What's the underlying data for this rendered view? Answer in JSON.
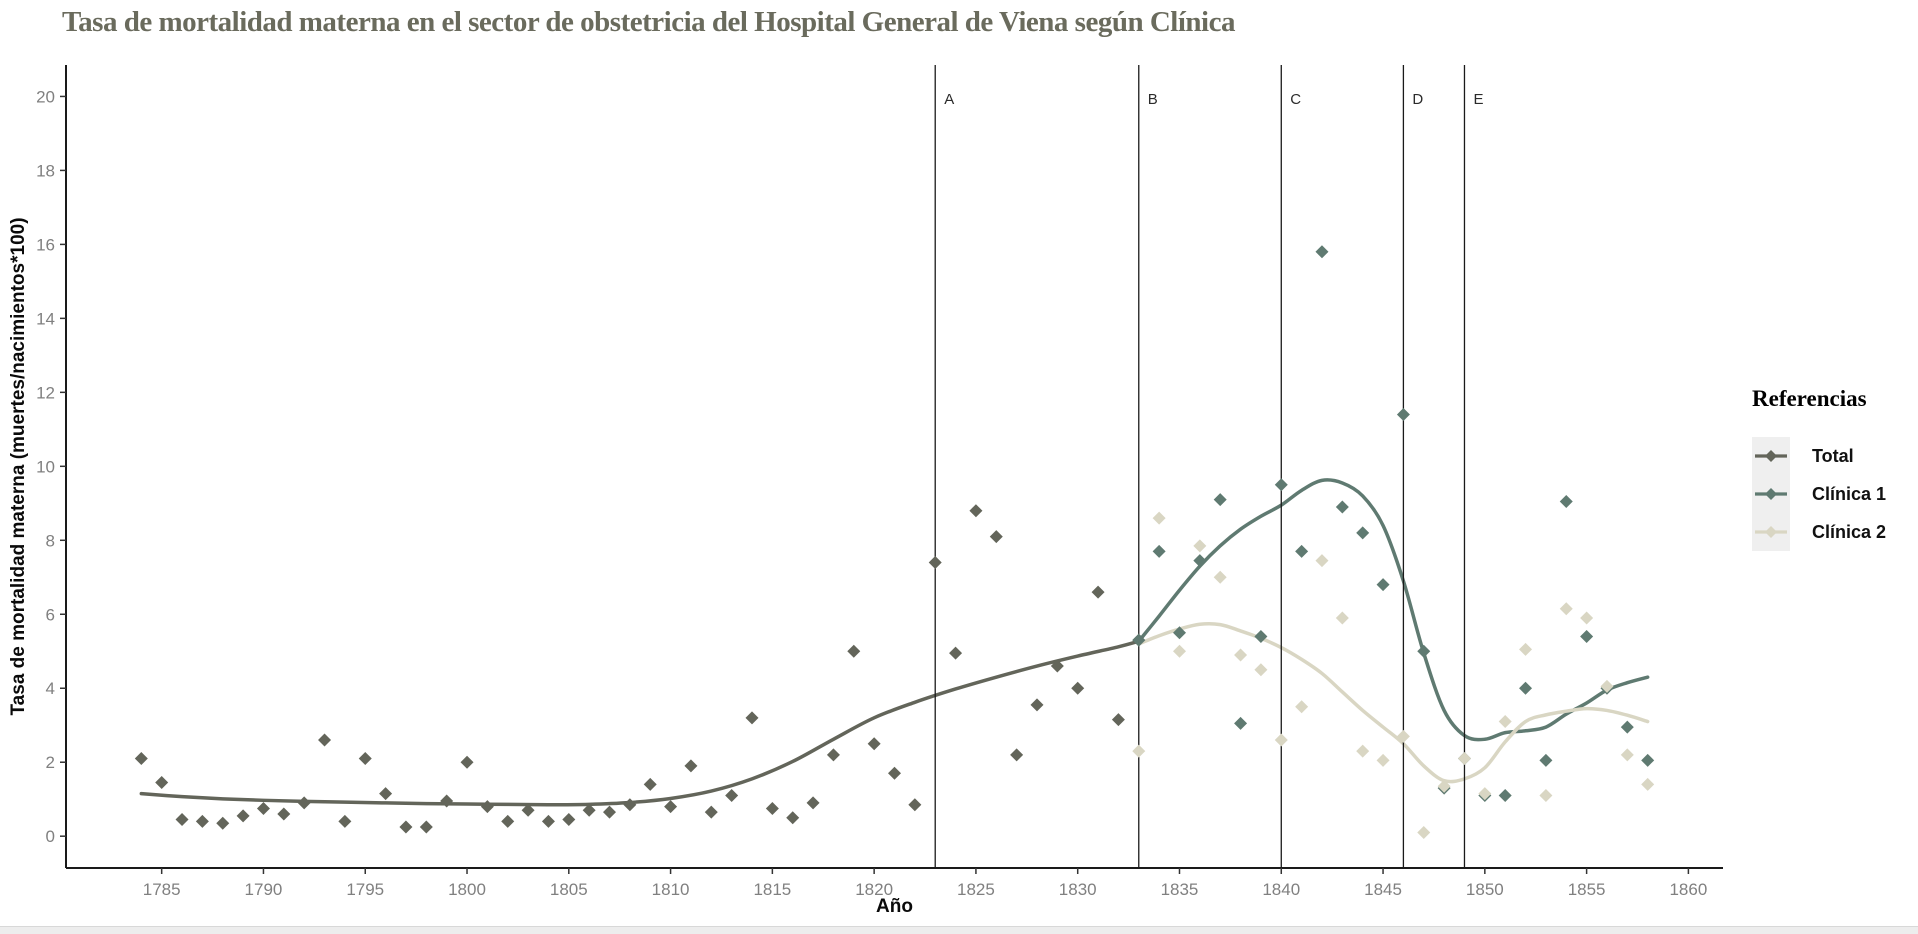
{
  "legend": {
    "title": "Referencias",
    "items": [
      {
        "label": "Total"
      },
      {
        "label": "Clínica 1"
      },
      {
        "label": "Clínica 2"
      }
    ]
  },
  "chart_data": {
    "type": "scatter",
    "title": "Tasa de mortalidad materna en el sector de obstetricia del Hospital General de Viena según Clínica",
    "xlabel": "Año",
    "ylabel": "Tasa de mortalidad materna (muertes/nacimientos*100)",
    "xlim": [
      1780.3,
      1861.7
    ],
    "ylim": [
      -0.86,
      20.85
    ],
    "x_ticks": [
      1785,
      1790,
      1795,
      1800,
      1805,
      1810,
      1815,
      1820,
      1825,
      1830,
      1835,
      1840,
      1845,
      1850,
      1855,
      1860
    ],
    "y_ticks": [
      0,
      2,
      4,
      6,
      8,
      10,
      12,
      14,
      16,
      18,
      20
    ],
    "grid": false,
    "legend_position": "right",
    "vlines": [
      {
        "label": "A",
        "year": 1823
      },
      {
        "label": "B",
        "year": 1833
      },
      {
        "label": "C",
        "year": 1840
      },
      {
        "label": "D",
        "year": 1846
      },
      {
        "label": "E",
        "year": 1849
      }
    ],
    "series": [
      {
        "name": "Total",
        "color": "#63655A",
        "points": [
          [
            1784,
            2.1
          ],
          [
            1785,
            1.45
          ],
          [
            1786,
            0.45
          ],
          [
            1787,
            0.4
          ],
          [
            1788,
            0.35
          ],
          [
            1789,
            0.55
          ],
          [
            1790,
            0.75
          ],
          [
            1791,
            0.6
          ],
          [
            1792,
            0.9
          ],
          [
            1793,
            2.6
          ],
          [
            1794,
            0.4
          ],
          [
            1795,
            2.1
          ],
          [
            1796,
            1.15
          ],
          [
            1797,
            0.25
          ],
          [
            1798,
            0.25
          ],
          [
            1799,
            0.95
          ],
          [
            1800,
            2.0
          ],
          [
            1801,
            0.8
          ],
          [
            1802,
            0.4
          ],
          [
            1803,
            0.7
          ],
          [
            1804,
            0.4
          ],
          [
            1805,
            0.45
          ],
          [
            1806,
            0.7
          ],
          [
            1807,
            0.65
          ],
          [
            1808,
            0.85
          ],
          [
            1809,
            1.4
          ],
          [
            1810,
            0.8
          ],
          [
            1811,
            1.9
          ],
          [
            1812,
            0.65
          ],
          [
            1813,
            1.1
          ],
          [
            1814,
            3.2
          ],
          [
            1815,
            0.75
          ],
          [
            1816,
            0.5
          ],
          [
            1817,
            0.9
          ],
          [
            1818,
            2.2
          ],
          [
            1819,
            5.0
          ],
          [
            1820,
            2.5
          ],
          [
            1821,
            1.7
          ],
          [
            1822,
            0.85
          ],
          [
            1823,
            7.4
          ],
          [
            1824,
            4.95
          ],
          [
            1825,
            8.8
          ],
          [
            1826,
            8.1
          ],
          [
            1827,
            2.2
          ],
          [
            1828,
            3.55
          ],
          [
            1829,
            4.6
          ],
          [
            1830,
            4.0
          ],
          [
            1831,
            6.6
          ],
          [
            1832,
            3.15
          ],
          [
            1833,
            5.3
          ]
        ],
        "smooth": [
          [
            1784,
            1.15
          ],
          [
            1786,
            1.07
          ],
          [
            1788,
            1.01
          ],
          [
            1790,
            0.97
          ],
          [
            1792,
            0.94
          ],
          [
            1794,
            0.92
          ],
          [
            1796,
            0.9
          ],
          [
            1798,
            0.88
          ],
          [
            1800,
            0.87
          ],
          [
            1802,
            0.86
          ],
          [
            1804,
            0.85
          ],
          [
            1806,
            0.86
          ],
          [
            1808,
            0.91
          ],
          [
            1810,
            1.02
          ],
          [
            1812,
            1.22
          ],
          [
            1814,
            1.55
          ],
          [
            1816,
            2.02
          ],
          [
            1818,
            2.62
          ],
          [
            1820,
            3.2
          ],
          [
            1822,
            3.62
          ],
          [
            1824,
            3.98
          ],
          [
            1826,
            4.3
          ],
          [
            1828,
            4.6
          ],
          [
            1830,
            4.87
          ],
          [
            1832,
            5.12
          ],
          [
            1833,
            5.27
          ]
        ]
      },
      {
        "name": "Clínica 1",
        "color": "#5F7A71",
        "points": [
          [
            1833,
            5.3
          ],
          [
            1834,
            7.7
          ],
          [
            1835,
            5.5
          ],
          [
            1836,
            7.45
          ],
          [
            1837,
            9.1
          ],
          [
            1838,
            3.05
          ],
          [
            1839,
            5.4
          ],
          [
            1840,
            9.5
          ],
          [
            1841,
            7.7
          ],
          [
            1842,
            15.8
          ],
          [
            1843,
            8.9
          ],
          [
            1844,
            8.2
          ],
          [
            1845,
            6.8
          ],
          [
            1846,
            11.4
          ],
          [
            1847,
            5.0
          ],
          [
            1848,
            1.3
          ],
          [
            1849,
            2.1
          ],
          [
            1850,
            1.1
          ],
          [
            1851,
            1.1
          ],
          [
            1852,
            4.0
          ],
          [
            1853,
            2.05
          ],
          [
            1854,
            9.05
          ],
          [
            1855,
            5.4
          ],
          [
            1856,
            4.0
          ],
          [
            1857,
            2.95
          ],
          [
            1858,
            2.05
          ]
        ],
        "smooth": [
          [
            1833,
            5.27
          ],
          [
            1834,
            5.95
          ],
          [
            1835,
            6.65
          ],
          [
            1836,
            7.3
          ],
          [
            1837,
            7.85
          ],
          [
            1838,
            8.3
          ],
          [
            1839,
            8.65
          ],
          [
            1840,
            8.95
          ],
          [
            1841,
            9.35
          ],
          [
            1842,
            9.62
          ],
          [
            1843,
            9.55
          ],
          [
            1844,
            9.2
          ],
          [
            1845,
            8.4
          ],
          [
            1846,
            6.9
          ],
          [
            1847,
            4.95
          ],
          [
            1848,
            3.4
          ],
          [
            1849,
            2.72
          ],
          [
            1850,
            2.62
          ],
          [
            1851,
            2.8
          ],
          [
            1852,
            2.85
          ],
          [
            1853,
            2.95
          ],
          [
            1854,
            3.3
          ],
          [
            1855,
            3.6
          ],
          [
            1856,
            3.95
          ],
          [
            1857,
            4.15
          ],
          [
            1858,
            4.3
          ]
        ]
      },
      {
        "name": "Clínica 2",
        "color": "#D9D6C3",
        "points": [
          [
            1833,
            2.3
          ],
          [
            1834,
            8.6
          ],
          [
            1835,
            5.0
          ],
          [
            1836,
            7.85
          ],
          [
            1837,
            7.0
          ],
          [
            1838,
            4.9
          ],
          [
            1839,
            4.5
          ],
          [
            1840,
            2.6
          ],
          [
            1841,
            3.5
          ],
          [
            1842,
            7.45
          ],
          [
            1843,
            5.9
          ],
          [
            1844,
            2.3
          ],
          [
            1845,
            2.05
          ],
          [
            1846,
            2.7
          ],
          [
            1847,
            0.1
          ],
          [
            1848,
            1.35
          ],
          [
            1849,
            2.1
          ],
          [
            1850,
            1.15
          ],
          [
            1851,
            3.1
          ],
          [
            1852,
            5.05
          ],
          [
            1853,
            1.1
          ],
          [
            1854,
            6.15
          ],
          [
            1855,
            5.9
          ],
          [
            1856,
            4.05
          ],
          [
            1857,
            2.2
          ],
          [
            1858,
            1.4
          ]
        ],
        "smooth": [
          [
            1833,
            5.2
          ],
          [
            1834,
            5.42
          ],
          [
            1835,
            5.6
          ],
          [
            1836,
            5.73
          ],
          [
            1837,
            5.72
          ],
          [
            1838,
            5.55
          ],
          [
            1839,
            5.35
          ],
          [
            1840,
            5.1
          ],
          [
            1841,
            4.78
          ],
          [
            1842,
            4.4
          ],
          [
            1843,
            3.9
          ],
          [
            1844,
            3.4
          ],
          [
            1845,
            2.95
          ],
          [
            1846,
            2.5
          ],
          [
            1847,
            1.9
          ],
          [
            1848,
            1.5
          ],
          [
            1849,
            1.55
          ],
          [
            1850,
            1.85
          ],
          [
            1851,
            2.55
          ],
          [
            1852,
            3.1
          ],
          [
            1853,
            3.28
          ],
          [
            1854,
            3.38
          ],
          [
            1855,
            3.45
          ],
          [
            1856,
            3.4
          ],
          [
            1857,
            3.27
          ],
          [
            1858,
            3.1
          ]
        ]
      }
    ]
  }
}
